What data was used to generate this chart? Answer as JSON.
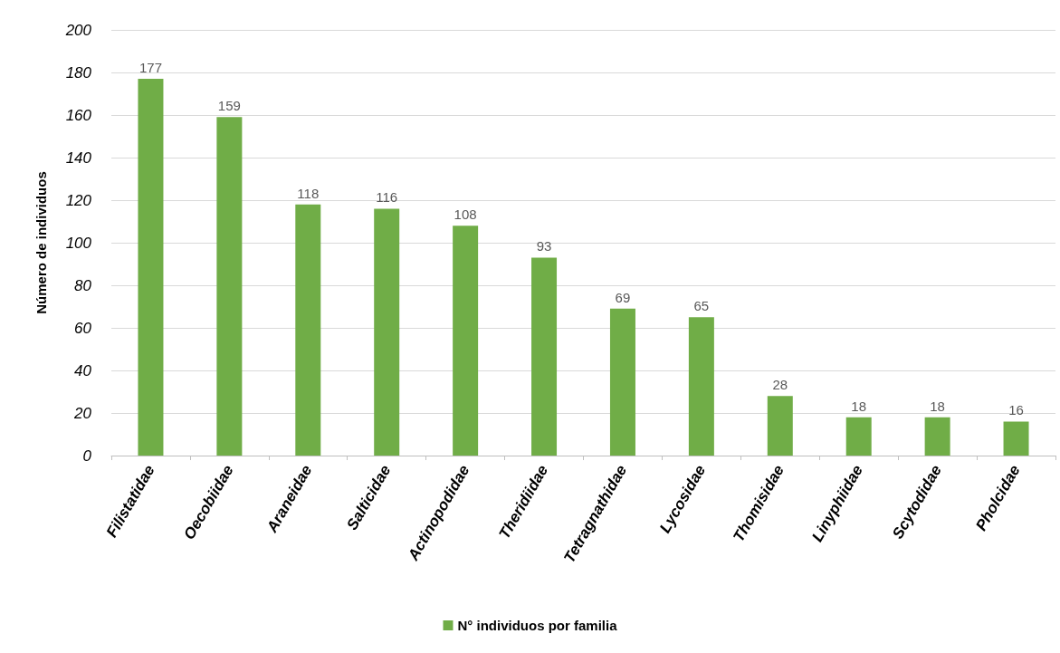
{
  "chart_data": {
    "type": "bar",
    "ylabel": "Número de individuos",
    "categories": [
      "Filistatidae",
      "Oecobiidae",
      "Araneidae",
      "Salticidae",
      "Actinopodidae",
      "Theridiidae",
      "Tetragnathidae",
      "Lycosidae",
      "Thomisidae",
      "Linyphiidae",
      "Scytodidae",
      "Pholcidae"
    ],
    "series": [
      {
        "name": "N° individuos por familia",
        "color": "#70ad47",
        "values": [
          177,
          159,
          118,
          116,
          108,
          93,
          69,
          65,
          28,
          18,
          18,
          16
        ]
      }
    ],
    "ylim": [
      0,
      200
    ],
    "yticks": [
      0,
      20,
      40,
      60,
      80,
      100,
      120,
      140,
      160,
      180,
      200
    ],
    "grid": "y",
    "legend": "bottom",
    "data_labels": true
  }
}
